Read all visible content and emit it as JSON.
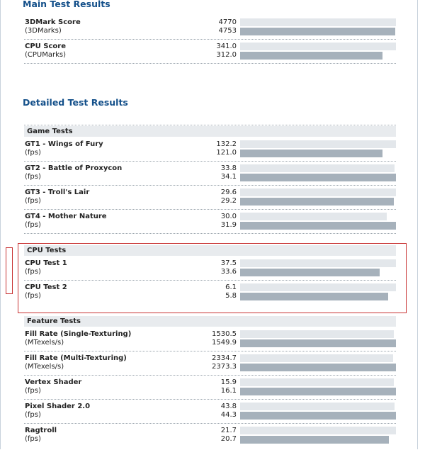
{
  "main": {
    "title": "Main Test Results",
    "rows": [
      {
        "name": "3DMark Score",
        "unit": "(3DMarks)",
        "value1": "4770",
        "value2": "4753",
        "fill1": 1.0,
        "fill2": 0.996
      },
      {
        "name": "CPU Score",
        "unit": "(CPUMarks)",
        "value1": "341.0",
        "value2": "312.0",
        "fill1": 1.0,
        "fill2": 0.915
      }
    ]
  },
  "detailed": {
    "title": "Detailed Test Results",
    "categories": [
      {
        "label": "Game Tests",
        "rows": [
          {
            "name": "GT1 - Wings of Fury",
            "unit": "(fps)",
            "value1": "132.2",
            "value2": "121.0",
            "fill1": 1.0,
            "fill2": 0.915
          },
          {
            "name": "GT2 - Battle of Proxycon",
            "unit": "(fps)",
            "value1": "33.8",
            "value2": "34.1",
            "fill1": 0.991,
            "fill2": 1.0
          },
          {
            "name": "GT3 - Troll's Lair",
            "unit": "(fps)",
            "value1": "29.6",
            "value2": "29.2",
            "fill1": 1.0,
            "fill2": 0.986
          },
          {
            "name": "GT4 - Mother Nature",
            "unit": "(fps)",
            "value1": "30.0",
            "value2": "31.9",
            "fill1": 0.94,
            "fill2": 1.0
          }
        ]
      },
      {
        "label": "CPU Tests",
        "highlighted": true,
        "rows": [
          {
            "name": "CPU Test 1",
            "unit": "(fps)",
            "value1": "37.5",
            "value2": "33.6",
            "fill1": 1.0,
            "fill2": 0.896
          },
          {
            "name": "CPU Test 2",
            "unit": "(fps)",
            "value1": "6.1",
            "value2": "5.8",
            "fill1": 1.0,
            "fill2": 0.951
          }
        ]
      },
      {
        "label": "Feature Tests",
        "rows": [
          {
            "name": "Fill Rate (Single-Texturing)",
            "unit": "(MTexels/s)",
            "value1": "1530.5",
            "value2": "1549.9",
            "fill1": 0.987,
            "fill2": 1.0
          },
          {
            "name": "Fill Rate (Multi-Texturing)",
            "unit": "(MTexels/s)",
            "value1": "2334.7",
            "value2": "2373.3",
            "fill1": 0.984,
            "fill2": 1.0
          },
          {
            "name": "Vertex Shader",
            "unit": "(fps)",
            "value1": "15.9",
            "value2": "16.1",
            "fill1": 0.988,
            "fill2": 1.0
          },
          {
            "name": "Pixel Shader 2.0",
            "unit": "(fps)",
            "value1": "43.8",
            "value2": "44.3",
            "fill1": 0.989,
            "fill2": 1.0
          },
          {
            "name": "Ragtroll",
            "unit": "(fps)",
            "value1": "21.7",
            "value2": "20.7",
            "fill1": 1.0,
            "fill2": 0.954
          }
        ]
      }
    ]
  },
  "colors": {
    "heading": "#14508a",
    "bar_primary": "#e3e7eb",
    "bar_secondary": "#a6b1bb",
    "highlight_border": "#c83232",
    "category_background": "#e8ebee"
  }
}
